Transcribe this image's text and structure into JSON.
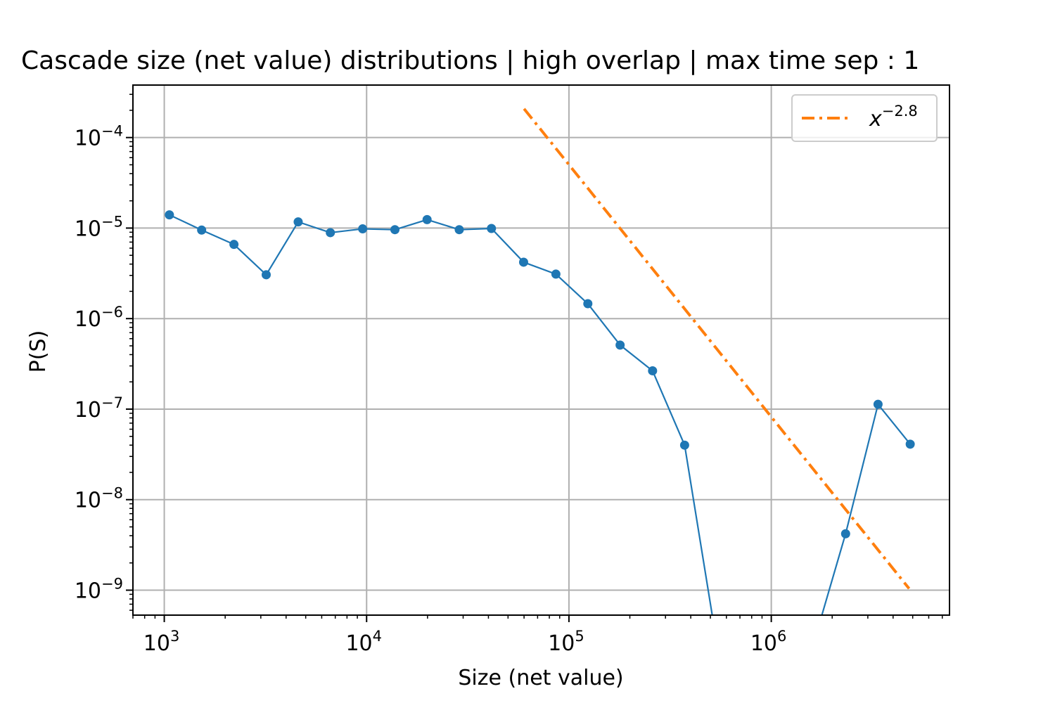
{
  "chart_data": {
    "type": "line",
    "title": "Cascade size (net value) distributions | high overlap | max time sep : 1",
    "xlabel": "Size (net value)",
    "ylabel": "P(S)",
    "xscale": "log",
    "yscale": "log",
    "xlim": [
      700,
      7600000
    ],
    "ylim": [
      5.3e-10,
      0.00038
    ],
    "grid": true,
    "legend_position": "top-right",
    "xticks": [
      {
        "value": 1000,
        "base": "10",
        "exp": "3"
      },
      {
        "value": 10000,
        "base": "10",
        "exp": "4"
      },
      {
        "value": 100000,
        "base": "10",
        "exp": "5"
      },
      {
        "value": 1000000,
        "base": "10",
        "exp": "6"
      }
    ],
    "yticks": [
      {
        "value": 0.0001,
        "base": "10",
        "exp": "−4"
      },
      {
        "value": 1e-05,
        "base": "10",
        "exp": "−5"
      },
      {
        "value": 1e-06,
        "base": "10",
        "exp": "−6"
      },
      {
        "value": 1e-07,
        "base": "10",
        "exp": "−7"
      },
      {
        "value": 1e-08,
        "base": "10",
        "exp": "−8"
      },
      {
        "value": 1e-09,
        "base": "10",
        "exp": "−9"
      }
    ],
    "series": [
      {
        "color": "#1f77b4",
        "marker": "circle",
        "points": [
          [
            1060,
            1.4e-05
          ],
          [
            1530,
            9.5e-06
          ],
          [
            2210,
            6.6e-06
          ],
          [
            3190,
            3.05e-06
          ],
          [
            4590,
            1.17e-05
          ],
          [
            6620,
            8.9e-06
          ],
          [
            9560,
            9.8e-06
          ],
          [
            13800,
            9.6e-06
          ],
          [
            19900,
            1.24e-05
          ],
          [
            28700,
            9.6e-06
          ],
          [
            41400,
            9.9e-06
          ],
          [
            59700,
            4.2e-06
          ],
          [
            86200,
            3.1e-06
          ],
          [
            124000,
            1.46e-06
          ],
          [
            179000,
            5.1e-07
          ],
          [
            259000,
            2.65e-07
          ],
          [
            373000,
            4e-08
          ],
          [
            538000,
            0
          ],
          [
            777000,
            0
          ],
          [
            1120000,
            0
          ],
          [
            1620000,
            0
          ],
          [
            2330000,
            4.2e-09
          ],
          [
            3370000,
            1.13e-07
          ],
          [
            4860000,
            4.1e-08
          ]
        ]
      },
      {
        "name": "x^{-2.8}",
        "color": "#ff7f0e",
        "style": "dashdot",
        "points": [
          [
            60000,
            0.000208
          ],
          [
            4800000,
            1.04e-09
          ]
        ]
      }
    ],
    "legend": [
      {
        "base": "x",
        "exp": "−2.8",
        "color": "#ff7f0e"
      }
    ]
  }
}
